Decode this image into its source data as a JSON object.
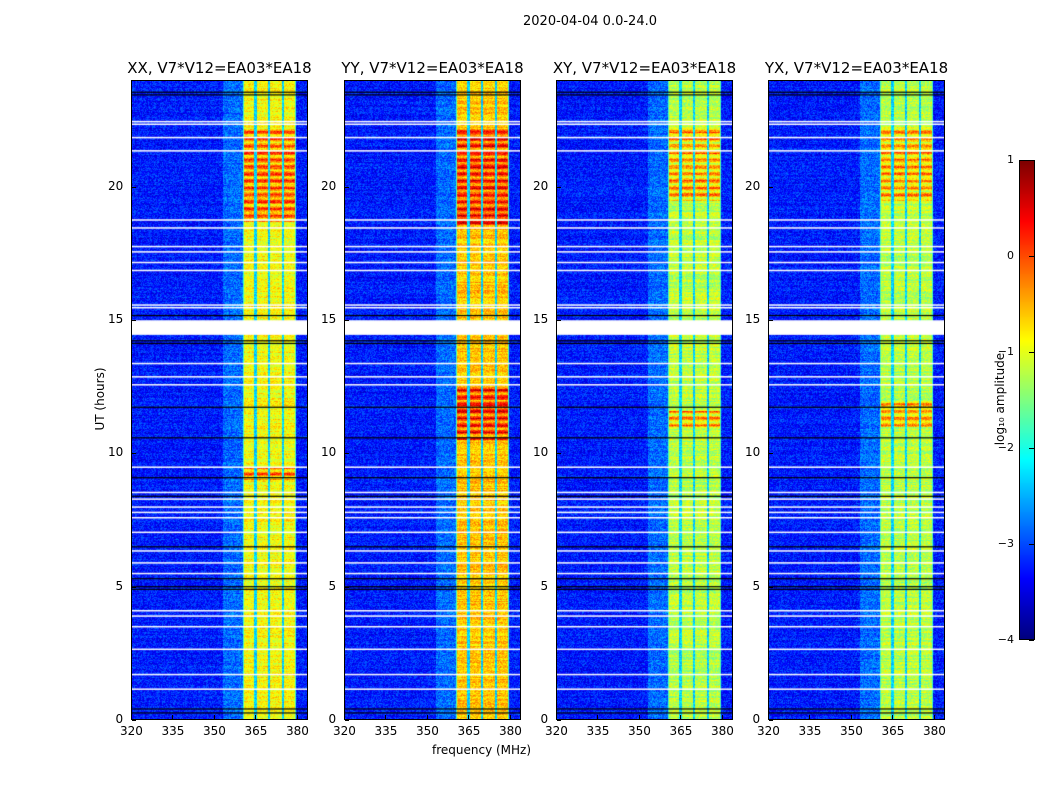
{
  "chart_data": {
    "type": "heatmap",
    "suptitle": "2020-04-04 0.0-24.0",
    "xlabel": "frequency (MHz)",
    "ylabel": "UT (hours)",
    "xlim": [
      320,
      384
    ],
    "ylim": [
      0,
      24
    ],
    "xticks": [
      320,
      335,
      350,
      365,
      380
    ],
    "yticks": [
      0,
      5,
      10,
      15,
      20
    ],
    "panels": [
      {
        "title": "XX, V7*V12=EA03*EA18",
        "band": [
          360.4,
          379.9
        ],
        "hot": [
          [
            18.7,
            22.2
          ],
          [
            9.0,
            9.5
          ]
        ],
        "level": -0.9
      },
      {
        "title": "YY, V7*V12=EA03*EA18",
        "band": [
          360.4,
          379.9
        ],
        "hot": [
          [
            18.5,
            22.3
          ],
          [
            10.5,
            12.5
          ]
        ],
        "level": -0.6
      },
      {
        "title": "XY, V7*V12=EA03*EA18",
        "band": [
          360.4,
          379.9
        ],
        "hot": [
          [
            19.5,
            22.3
          ],
          [
            11.0,
            11.6
          ]
        ],
        "level": -1.2
      },
      {
        "title": "YX, V7*V12=EA03*EA18",
        "band": [
          360.4,
          379.9
        ],
        "hot": [
          [
            19.5,
            22.3
          ],
          [
            11.0,
            12.0
          ]
        ],
        "level": -1.2
      }
    ],
    "subband_gaps_mhz": [
      365.0,
      370.0,
      375.0
    ],
    "flagged_hours": [
      22.5,
      22.4,
      21.9,
      21.4,
      18.8,
      18.5,
      17.8,
      17.6,
      17.2,
      16.9,
      15.6,
      15.5,
      13.4,
      12.9,
      12.6,
      9.5,
      8.55,
      8.3,
      8.0,
      7.8,
      7.6,
      7.05,
      6.35,
      5.9,
      5.5,
      4.1,
      3.9,
      3.5,
      2.65,
      1.7,
      1.15
    ],
    "flagged_ranges": [
      [
        14.45,
        15.0
      ]
    ],
    "dark_hours": [
      23.6,
      23.5,
      15.2,
      14.25,
      14.15,
      11.75,
      10.6,
      9.1,
      8.4,
      6.5,
      5.3,
      5.0,
      4.9,
      0.4,
      0.25
    ],
    "colorbar": {
      "label": "log₁₀ amplitude",
      "range": [
        -4,
        1
      ],
      "ticks": [
        1,
        0,
        -1,
        -2,
        -3,
        -4
      ],
      "tick_labels": [
        "1",
        "0",
        "−1",
        "−2",
        "−3",
        "−4"
      ],
      "colormap": "jet"
    }
  }
}
